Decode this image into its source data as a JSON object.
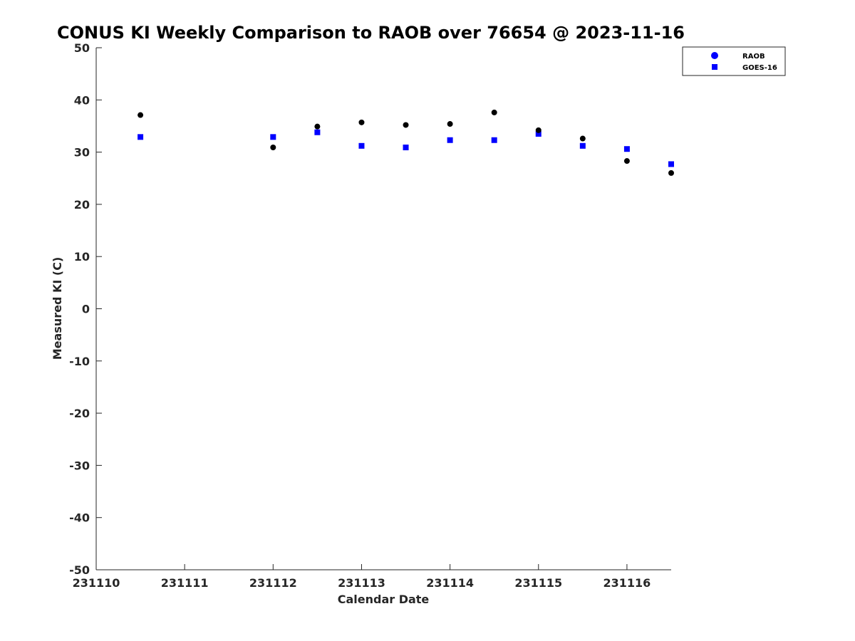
{
  "chart_data": {
    "type": "scatter",
    "title": "CONUS KI Weekly Comparison to RAOB over 76654 @ 2023-11-16",
    "xlabel": "Calendar Date",
    "ylabel": "Measured KI (C)",
    "xlim": [
      231110,
      231116.5
    ],
    "ylim": [
      -50,
      50
    ],
    "xticks": [
      231110,
      231111,
      231112,
      231113,
      231114,
      231115,
      231116
    ],
    "xtick_labels": [
      "231110",
      "231111",
      "231112",
      "231113",
      "231114",
      "231115",
      "231116"
    ],
    "yticks": [
      -50,
      -40,
      -30,
      -20,
      -10,
      0,
      10,
      20,
      30,
      40,
      50
    ],
    "ytick_labels": [
      "-50",
      "-40",
      "-30",
      "-20",
      "-10",
      "0",
      "10",
      "20",
      "30",
      "40",
      "50"
    ],
    "grid": false,
    "legend_position": "top-right",
    "series": [
      {
        "name": "RAOB",
        "marker": "circle",
        "legend_color": "#0000ff",
        "point_color": "#000000",
        "x": [
          231110.5,
          231112,
          231112.5,
          231113,
          231113.5,
          231114,
          231114.5,
          231115,
          231115.5,
          231116,
          231116.5
        ],
        "y": [
          37.1,
          30.9,
          34.9,
          35.7,
          35.2,
          35.4,
          37.6,
          34.2,
          32.6,
          28.3,
          26.0
        ]
      },
      {
        "name": "GOES-16",
        "marker": "square",
        "legend_color": "#0000ff",
        "point_color": "#0000ff",
        "x": [
          231110.5,
          231112,
          231112.5,
          231113,
          231113.5,
          231114,
          231114.5,
          231115,
          231115.5,
          231116,
          231116.5
        ],
        "y": [
          32.9,
          32.9,
          33.8,
          31.2,
          30.9,
          32.3,
          32.3,
          33.5,
          31.2,
          30.6,
          27.7
        ]
      }
    ]
  }
}
